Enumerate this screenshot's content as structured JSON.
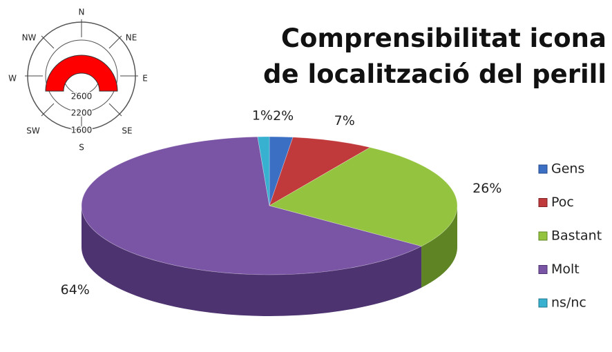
{
  "chart_data": {
    "type": "pie3d",
    "title": "Comprensibilitat icona de localització del perill",
    "categories": [
      "Gens",
      "Poc",
      "Bastant",
      "Molt",
      "ns/nc"
    ],
    "values": [
      2,
      7,
      26,
      64,
      1
    ],
    "value_labels": [
      "2%",
      "7%",
      "26%",
      "64%",
      "1%"
    ],
    "colors": [
      "#3a6fc4",
      "#c0393b",
      "#94c43f",
      "#7b55a5",
      "#38b0d0"
    ],
    "side_colors": [
      "#25488a",
      "#7e2224",
      "#5e8424",
      "#4d3370",
      "#21768e"
    ],
    "legend": "right"
  },
  "icon": {
    "directions": [
      "N",
      "NE",
      "E",
      "SE",
      "S",
      "SW",
      "W",
      "NW"
    ],
    "elevations": [
      "2600",
      "2200",
      "1600"
    ]
  }
}
